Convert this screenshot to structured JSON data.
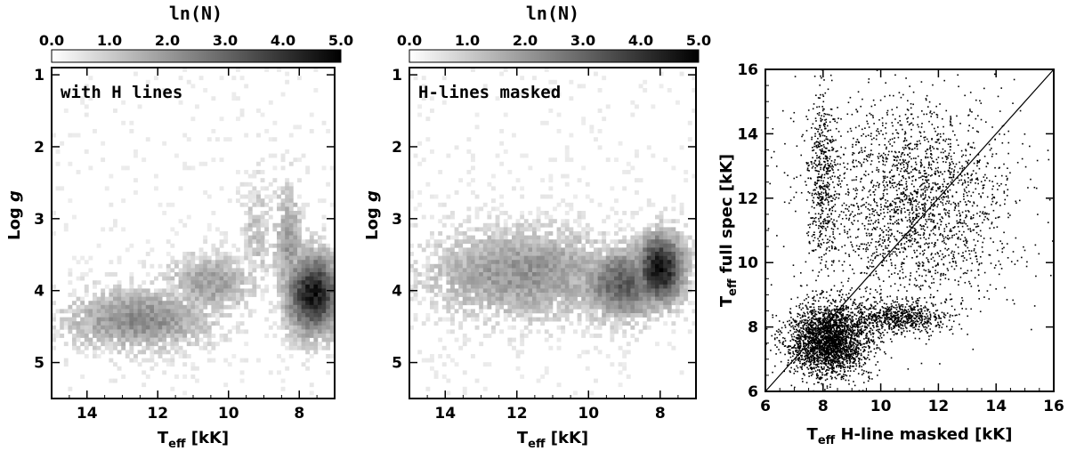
{
  "chart_data": [
    {
      "type": "heatmap",
      "colorbar": {
        "title": "ln(N)",
        "ticks": [
          "0.0",
          "1.0",
          "2.0",
          "3.0",
          "4.0",
          "5.0"
        ],
        "range": [
          0,
          5
        ]
      },
      "annotation": "with H lines",
      "xlabel": {
        "main": "T",
        "sub": "eff",
        "rest": " [kK]"
      },
      "ylabel": {
        "main": "Log ",
        "italic": "g"
      },
      "xlim": [
        15,
        7
      ],
      "ylim": [
        5.5,
        0.9
      ],
      "xticks": [
        14,
        12,
        10,
        8
      ],
      "yticks": [
        1,
        2,
        3,
        4,
        5
      ],
      "blobs": [
        {
          "teff": 12.5,
          "logg": 4.4,
          "sx": 1.5,
          "sy": 0.3,
          "peak": 2.3
        },
        {
          "teff": 10.5,
          "logg": 3.9,
          "sx": 0.9,
          "sy": 0.3,
          "peak": 1.9
        },
        {
          "teff": 9.2,
          "logg": 3.2,
          "sx": 0.3,
          "sy": 0.5,
          "peak": 1.3
        },
        {
          "teff": 7.6,
          "logg": 4.05,
          "sx": 0.55,
          "sy": 0.4,
          "peak": 4.6
        },
        {
          "teff": 8.3,
          "logg": 3.4,
          "sx": 0.3,
          "sy": 0.6,
          "peak": 2.0
        }
      ]
    },
    {
      "type": "heatmap",
      "colorbar": {
        "title": "ln(N)",
        "ticks": [
          "0.0",
          "1.0",
          "2.0",
          "3.0",
          "4.0",
          "5.0"
        ],
        "range": [
          0,
          5
        ]
      },
      "annotation": "H-lines masked",
      "xlabel": {
        "main": "T",
        "sub": "eff",
        "rest": " [kK]"
      },
      "ylabel": {
        "main": "Log ",
        "italic": "g"
      },
      "xlim": [
        15,
        7
      ],
      "ylim": [
        5.5,
        0.9
      ],
      "xticks": [
        14,
        12,
        10,
        8
      ],
      "yticks": [
        1,
        2,
        3,
        4,
        5
      ],
      "blobs": [
        {
          "teff": 11.8,
          "logg": 3.75,
          "sx": 2.0,
          "sy": 0.45,
          "peak": 2.1
        },
        {
          "teff": 9.0,
          "logg": 3.9,
          "sx": 0.9,
          "sy": 0.35,
          "peak": 3.2
        },
        {
          "teff": 8.0,
          "logg": 3.7,
          "sx": 0.5,
          "sy": 0.35,
          "peak": 4.7
        }
      ]
    },
    {
      "type": "scatter",
      "xlabel": {
        "main": "T",
        "sub": "eff",
        "rest": " H-line masked [kK]"
      },
      "ylabel": {
        "main": "T",
        "sub": "eff",
        "rest": " full spec [kK]"
      },
      "xlim": [
        6,
        16
      ],
      "ylim": [
        6,
        16
      ],
      "xticks": [
        6,
        8,
        10,
        12,
        14,
        16
      ],
      "yticks": [
        6,
        8,
        10,
        12,
        14,
        16
      ],
      "reference_line": {
        "x": [
          6,
          16
        ],
        "y": [
          6,
          16
        ]
      },
      "groups": [
        {
          "x_mean": 8.0,
          "x_sd": 0.25,
          "y_mean": 12.6,
          "y_sd": 1.4,
          "n": 500
        },
        {
          "x_mean": 8.2,
          "x_sd": 0.7,
          "y_mean": 7.6,
          "y_sd": 0.55,
          "n": 2600
        },
        {
          "x_mean": 10.5,
          "x_sd": 0.9,
          "y_mean": 8.3,
          "y_sd": 0.25,
          "n": 700
        },
        {
          "x_mean": 11.2,
          "x_sd": 1.7,
          "y_mean": 11.8,
          "y_sd": 1.7,
          "n": 2200
        }
      ]
    }
  ]
}
